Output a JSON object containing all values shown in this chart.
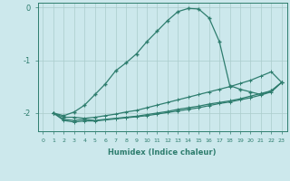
{
  "xlabel": "Humidex (Indice chaleur)",
  "bg_color": "#cce8ec",
  "grid_color": "#aacccc",
  "line_color": "#2e7d6e",
  "xlim": [
    -0.5,
    23.5
  ],
  "ylim": [
    -2.35,
    0.08
  ],
  "yticks": [
    0,
    -1,
    -2
  ],
  "xticks": [
    0,
    1,
    2,
    3,
    4,
    5,
    6,
    7,
    8,
    9,
    10,
    11,
    12,
    13,
    14,
    15,
    16,
    17,
    18,
    19,
    20,
    21,
    22,
    23
  ],
  "line1_x": [
    1,
    2,
    3,
    4,
    5,
    6,
    7,
    8,
    9,
    10,
    11,
    12,
    13,
    14,
    15,
    16,
    17,
    18,
    19,
    20,
    21,
    22,
    23
  ],
  "line1_y": [
    -2.0,
    -2.05,
    -1.98,
    -1.85,
    -1.65,
    -1.45,
    -1.2,
    -1.05,
    -0.88,
    -0.65,
    -0.45,
    -0.25,
    -0.08,
    -0.02,
    -0.03,
    -0.2,
    -0.65,
    -1.48,
    -1.55,
    -1.6,
    -1.65,
    -1.58,
    -1.42
  ],
  "line2_x": [
    1,
    2,
    3,
    4,
    5,
    6,
    7,
    8,
    9,
    10,
    11,
    12,
    13,
    14,
    15,
    16,
    17,
    18,
    19,
    20,
    21,
    22,
    23
  ],
  "line2_y": [
    -2.0,
    -2.08,
    -2.08,
    -2.1,
    -2.08,
    -2.05,
    -2.02,
    -1.98,
    -1.95,
    -1.9,
    -1.85,
    -1.8,
    -1.75,
    -1.7,
    -1.65,
    -1.6,
    -1.55,
    -1.5,
    -1.44,
    -1.38,
    -1.3,
    -1.22,
    -1.42
  ],
  "line3_x": [
    1,
    2,
    3,
    4,
    5,
    6,
    7,
    8,
    9,
    10,
    11,
    12,
    13,
    14,
    15,
    16,
    17,
    18,
    19,
    20,
    21,
    22,
    23
  ],
  "line3_y": [
    -2.0,
    -2.12,
    -2.14,
    -2.12,
    -2.14,
    -2.12,
    -2.1,
    -2.08,
    -2.06,
    -2.03,
    -2.0,
    -1.97,
    -1.93,
    -1.9,
    -1.87,
    -1.83,
    -1.8,
    -1.77,
    -1.73,
    -1.68,
    -1.63,
    -1.58,
    -1.42
  ],
  "line4_x": [
    1,
    2,
    3,
    4,
    5,
    6,
    7,
    8,
    9,
    10,
    11,
    12,
    13,
    14,
    15,
    16,
    17,
    18,
    19,
    20,
    21,
    22,
    23
  ],
  "line4_y": [
    -2.0,
    -2.14,
    -2.17,
    -2.15,
    -2.15,
    -2.13,
    -2.11,
    -2.09,
    -2.07,
    -2.05,
    -2.02,
    -1.99,
    -1.96,
    -1.93,
    -1.9,
    -1.86,
    -1.82,
    -1.79,
    -1.75,
    -1.71,
    -1.66,
    -1.6,
    -1.42
  ]
}
